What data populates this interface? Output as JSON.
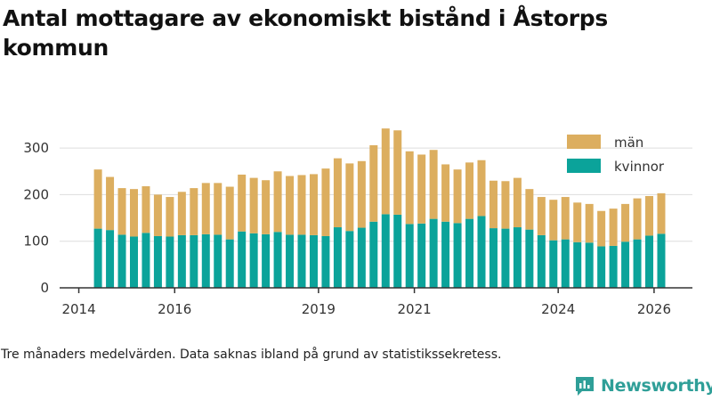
{
  "title": "Antal mottagare av ekonomiskt bistånd i Åstorps kommun",
  "footnote": "Tre månaders medelvärden. Data saknas ibland på grund av statistikssekretess.",
  "brand": {
    "name": "Newsworthy"
  },
  "colors": {
    "man": "#dcae5f",
    "kvinnor": "#0ba39a",
    "axis": "#333333",
    "grid": "#dddddd",
    "brand": "#2f9f98"
  },
  "chart_data": {
    "type": "bar",
    "stacked": true,
    "title": "Antal mottagare av ekonomiskt bistånd i Åstorps kommun",
    "xlabel": "",
    "ylabel": "",
    "ylim": [
      0,
      350
    ],
    "xlim": [
      2013.6,
      2026.8
    ],
    "yticks": [
      0,
      100,
      200,
      300
    ],
    "xticks": [
      2014,
      2016,
      2019,
      2021,
      2024,
      2026
    ],
    "grid": true,
    "legend_position": "top-right",
    "x": [
      2014.4,
      2014.65,
      2014.9,
      2015.15,
      2015.4,
      2015.65,
      2015.9,
      2016.15,
      2016.4,
      2016.65,
      2016.9,
      2017.15,
      2017.4,
      2017.65,
      2017.9,
      2018.15,
      2018.4,
      2018.65,
      2018.9,
      2019.15,
      2019.4,
      2019.65,
      2019.9,
      2020.15,
      2020.4,
      2020.65,
      2020.9,
      2021.15,
      2021.4,
      2021.65,
      2021.9,
      2022.15,
      2022.4,
      2022.65,
      2022.9,
      2023.15,
      2023.4,
      2023.65,
      2023.9,
      2024.15,
      2024.4,
      2024.65,
      2024.9,
      2025.15,
      2025.4,
      2025.65,
      2025.9,
      2026.15
    ],
    "series": [
      {
        "name": "kvinnor",
        "color": "#0ba39a",
        "values": [
          127,
          124,
          114,
          110,
          118,
          111,
          110,
          113,
          113,
          115,
          114,
          104,
          121,
          117,
          115,
          120,
          114,
          114,
          113,
          111,
          130,
          122,
          129,
          142,
          158,
          157,
          137,
          138,
          148,
          142,
          139,
          148,
          154,
          128,
          127,
          130,
          125,
          113,
          102,
          104,
          98,
          97,
          89,
          90,
          99,
          104,
          112,
          116
        ]
      },
      {
        "name": "män",
        "color": "#dcae5f",
        "values": [
          127,
          114,
          100,
          102,
          100,
          89,
          85,
          93,
          101,
          110,
          111,
          113,
          122,
          119,
          116,
          130,
          126,
          128,
          131,
          145,
          148,
          145,
          143,
          164,
          184,
          181,
          156,
          148,
          148,
          123,
          115,
          121,
          120,
          102,
          102,
          106,
          87,
          82,
          87,
          91,
          85,
          83,
          76,
          80,
          81,
          88,
          85,
          87
        ]
      }
    ],
    "legend": [
      "män",
      "kvinnor"
    ]
  }
}
